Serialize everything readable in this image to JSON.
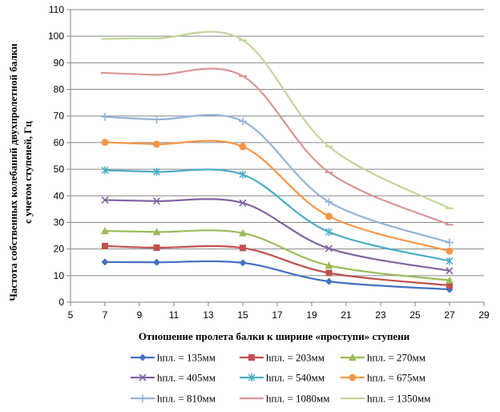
{
  "chart_data": {
    "type": "line",
    "title": "",
    "xlabel": "Отношение пролета балки к ширине «проступи» ступени",
    "ylabel_lines": [
      "Частота собственных колебаний  двухпролетной балки",
      "с учетом ступеней, Гц"
    ],
    "xlim": [
      5,
      29
    ],
    "ylim": [
      0,
      110
    ],
    "x_ticks": [
      5,
      7,
      9,
      11,
      13,
      15,
      17,
      19,
      21,
      23,
      25,
      27,
      29
    ],
    "y_ticks": [
      0,
      10,
      20,
      30,
      40,
      50,
      60,
      70,
      80,
      90,
      100,
      110
    ],
    "grid": "horizontal",
    "legend_position": "bottom",
    "x": [
      7,
      10,
      15,
      20,
      27
    ],
    "series": [
      {
        "name": "hпл. = 135мм",
        "values": [
          15.1,
          15.0,
          14.8,
          7.8,
          4.8
        ],
        "color": "#4472c4",
        "marker": "diamond"
      },
      {
        "name": "hпл. = 203мм",
        "values": [
          21.1,
          20.5,
          20.4,
          11.0,
          6.3
        ],
        "color": "#c0504d",
        "marker": "square"
      },
      {
        "name": "hпл. = 270мм",
        "values": [
          26.8,
          26.4,
          26.0,
          13.8,
          8.2
        ],
        "color": "#9bbb59",
        "marker": "triangle"
      },
      {
        "name": "hпл. = 405мм",
        "values": [
          38.4,
          38.0,
          37.3,
          20.2,
          11.8
        ],
        "color": "#8064a2",
        "marker": "x"
      },
      {
        "name": "hпл. = 540мм",
        "values": [
          49.6,
          49.0,
          48.0,
          26.4,
          15.5
        ],
        "color": "#4bacc6",
        "marker": "star"
      },
      {
        "name": "hпл. = 675мм",
        "values": [
          60.1,
          59.4,
          58.5,
          32.3,
          19.2
        ],
        "color": "#f79646",
        "marker": "circle"
      },
      {
        "name": "hпл. = 810мм",
        "values": [
          69.7,
          68.7,
          68.0,
          37.7,
          22.4
        ],
        "color": "#95b3d7",
        "marker": "plus"
      },
      {
        "name": "hпл. = 1080мм",
        "values": [
          86.2,
          85.5,
          85.0,
          48.8,
          29.1
        ],
        "color": "#d99694",
        "marker": "dash"
      },
      {
        "name": "hпл. = 1350мм",
        "values": [
          99.0,
          99.2,
          98.5,
          58.5,
          35.3
        ],
        "color": "#c3d69b",
        "marker": "dash"
      }
    ]
  }
}
